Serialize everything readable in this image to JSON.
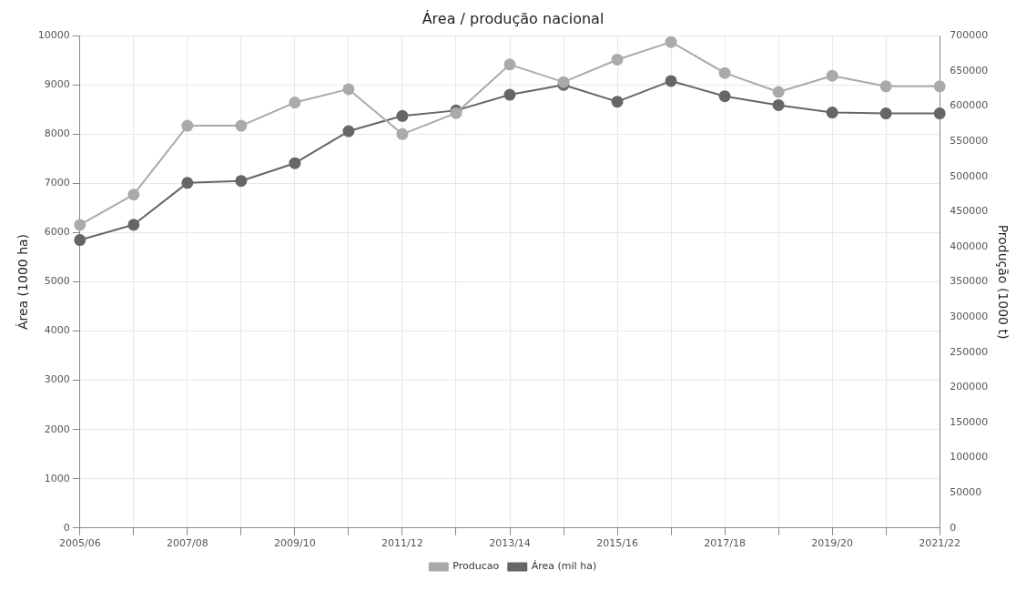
{
  "chart_data": {
    "type": "line",
    "title": "Área / produção nacional",
    "ylabel": "Área (1000 ha)",
    "y2label": "Produção (1000 t)",
    "categories": [
      "2005/06",
      null,
      "2007/08",
      null,
      "2009/10",
      null,
      "2011/12",
      null,
      "2013/14",
      null,
      "2015/16",
      null,
      "2017/18",
      null,
      "2019/20",
      null,
      "2021/22"
    ],
    "series": [
      {
        "name": "Área (mil ha)",
        "color": "#666666",
        "values": [
          5850,
          6160,
          7010,
          7050,
          7410,
          8060,
          8370,
          8480,
          8800,
          9000,
          8660,
          9080,
          8770,
          8590,
          8440,
          8420,
          8420
        ]
      },
      {
        "name": "Producao",
        "color": "#aaaaaa",
        "axis": "y2",
        "values": [
          431000,
          474000,
          572000,
          572000,
          605000,
          624000,
          560000,
          590000,
          659000,
          634000,
          666000,
          691000,
          647000,
          620000,
          643000,
          628000,
          628000
        ]
      }
    ],
    "ylim": [
      0,
      10000
    ],
    "yticks": [
      0,
      1000,
      2000,
      3000,
      4000,
      5000,
      6000,
      7000,
      8000,
      9000,
      10000
    ],
    "y2lim": [
      0,
      700000
    ],
    "y2ticks": [
      0,
      50000,
      100000,
      150000,
      200000,
      250000,
      300000,
      350000,
      400000,
      450000,
      500000,
      550000,
      600000,
      650000,
      700000
    ],
    "grid": true,
    "legend": "bottom",
    "marker": "circle",
    "line_style": "solid"
  }
}
